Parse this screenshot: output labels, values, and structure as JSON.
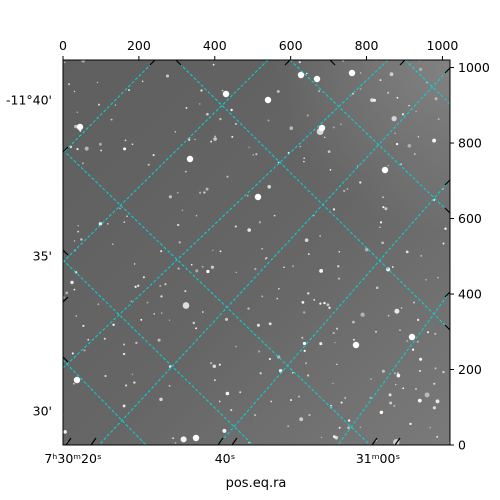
{
  "chart_data": {
    "type": "image",
    "image": {
      "description_colormap": "gray"
    },
    "xlabel": "pos.eq.ra",
    "ylabel": "",
    "pixel_x_ticks": [
      0,
      200,
      400,
      600,
      800,
      1000
    ],
    "pixel_y_ticks": [
      0,
      200,
      400,
      600,
      800,
      1000
    ],
    "pixel_xlim": [
      0,
      1020
    ],
    "pixel_ylim": [
      0,
      1020
    ],
    "ra_tick_labels": [
      {
        "label": "7ʰ30ᵐ20ˢ"
      },
      {
        "label": "40ˢ"
      },
      {
        "label": "31ᵐ00ˢ"
      }
    ],
    "dec_tick_labels": [
      {
        "label": "-11°40'"
      },
      {
        "label": "35'"
      },
      {
        "label": "30'"
      }
    ],
    "grid": true,
    "grid_color": "#00d8d8",
    "image_background": "#6a6a6a"
  }
}
